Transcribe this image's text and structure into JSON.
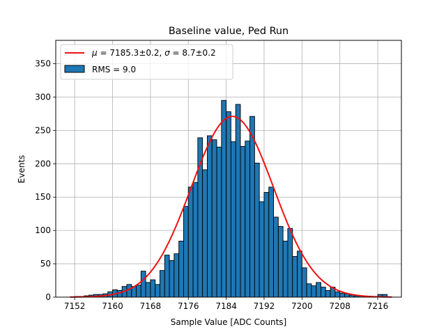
{
  "chart_data": {
    "type": "bar",
    "title": "Baseline value, Ped Run",
    "xlabel": "Sample Value [ADC Counts]",
    "ylabel": "Events",
    "xlim": [
      7148,
      7221
    ],
    "ylim": [
      0,
      385
    ],
    "xticks": [
      7152,
      7160,
      7168,
      7176,
      7184,
      7192,
      7200,
      7208,
      7216
    ],
    "yticks": [
      0,
      50,
      100,
      150,
      200,
      250,
      300,
      350
    ],
    "grid": true,
    "legend_position": "top-left",
    "bin_width": 1,
    "series": [
      {
        "name": "RMS = 9.0",
        "kind": "histogram",
        "color": "#1f77b4",
        "edge_color": "#000000",
        "bins_start": [
          7151,
          7152,
          7153,
          7154,
          7155,
          7156,
          7157,
          7158,
          7159,
          7160,
          7161,
          7162,
          7163,
          7164,
          7165,
          7166,
          7167,
          7168,
          7169,
          7170,
          7171,
          7172,
          7173,
          7174,
          7175,
          7176,
          7177,
          7178,
          7179,
          7180,
          7181,
          7182,
          7183,
          7184,
          7185,
          7186,
          7187,
          7188,
          7189,
          7190,
          7191,
          7192,
          7193,
          7194,
          7195,
          7196,
          7197,
          7198,
          7199,
          7200,
          7201,
          7202,
          7203,
          7204,
          7205,
          7206,
          7207,
          7208,
          7209,
          7210,
          7211,
          7212,
          7213,
          7214,
          7215,
          7216,
          7217,
          7218
        ],
        "counts": [
          0,
          1,
          1,
          2,
          3,
          4,
          4,
          5,
          8,
          11,
          10,
          16,
          19,
          16,
          18,
          39,
          22,
          26,
          19,
          40,
          63,
          55,
          65,
          84,
          136,
          165,
          172,
          239,
          191,
          242,
          236,
          225,
          295,
          278,
          233,
          289,
          226,
          234,
          271,
          201,
          143,
          157,
          165,
          120,
          106,
          84,
          103,
          61,
          69,
          44,
          20,
          17,
          22,
          15,
          10,
          15,
          8,
          6,
          5,
          3,
          2,
          2,
          1,
          1,
          1,
          4,
          4,
          0
        ]
      },
      {
        "name": "$\\mu=7185.3\\pm0.2$, $\\sigma=8.7\\pm0.2$",
        "kind": "line",
        "color": "#ee1111",
        "fit": "gaussian",
        "mu": 7185.3,
        "sigma": 8.7,
        "amplitude": 271
      }
    ]
  },
  "legend": {
    "fit_prefix_mu": "μ",
    "fit_mid1": " = 7185.3±0.2, ",
    "fit_prefix_sigma": "σ",
    "fit_mid2": " = 8.7±0.2",
    "hist_label": "RMS = 9.0"
  }
}
